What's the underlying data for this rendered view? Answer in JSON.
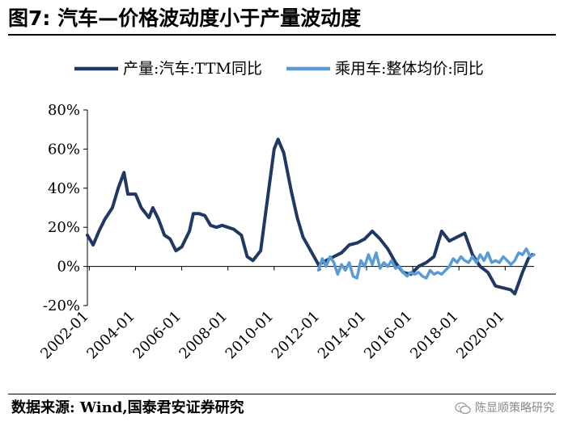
{
  "figure": {
    "title": "图7:  汽车—价格波动度小于产量波动度",
    "source": "数据来源:  Wind,国泰君安证券研究",
    "watermark": "陈显顺策略研究",
    "watermark_icon": "wechat-icon"
  },
  "chart_data": {
    "type": "line",
    "title": "",
    "xlabel": "",
    "ylabel": "",
    "ylim": [
      -20,
      80
    ],
    "yticks": [
      -20,
      0,
      20,
      40,
      60,
      80
    ],
    "ytick_labels": [
      "-20%",
      "0%",
      "20%",
      "40%",
      "60%",
      "80%"
    ],
    "x_range": [
      "2001-12",
      "2021-04"
    ],
    "xtick_labels": [
      "2002-01",
      "2004-01",
      "2006-01",
      "2008-01",
      "2010-01",
      "2012-01",
      "2014-01",
      "2016-01",
      "2018-01",
      "2020-01"
    ],
    "grid": false,
    "legend": "top",
    "series": [
      {
        "name": "产量:汽车:TTM同比",
        "color": "#1f3864",
        "points": [
          [
            "2001-12",
            16
          ],
          [
            "2002-03",
            11
          ],
          [
            "2002-06",
            18
          ],
          [
            "2002-09",
            24
          ],
          [
            "2003-01",
            30
          ],
          [
            "2003-04",
            40
          ],
          [
            "2003-07",
            48
          ],
          [
            "2003-09",
            37
          ],
          [
            "2004-01",
            37
          ],
          [
            "2004-04",
            30
          ],
          [
            "2004-08",
            25
          ],
          [
            "2004-10",
            30
          ],
          [
            "2005-01",
            24
          ],
          [
            "2005-04",
            16
          ],
          [
            "2005-07",
            14
          ],
          [
            "2005-10",
            8
          ],
          [
            "2006-01",
            10
          ],
          [
            "2006-05",
            18
          ],
          [
            "2006-07",
            27
          ],
          [
            "2006-10",
            27
          ],
          [
            "2007-01",
            26
          ],
          [
            "2007-04",
            21
          ],
          [
            "2007-07",
            20
          ],
          [
            "2007-10",
            21
          ],
          [
            "2008-01",
            20
          ],
          [
            "2008-04",
            19
          ],
          [
            "2008-08",
            16
          ],
          [
            "2008-11",
            5
          ],
          [
            "2009-02",
            3
          ],
          [
            "2009-06",
            8
          ],
          [
            "2009-10",
            38
          ],
          [
            "2010-01",
            60
          ],
          [
            "2010-03",
            65
          ],
          [
            "2010-06",
            58
          ],
          [
            "2010-10",
            38
          ],
          [
            "2011-01",
            25
          ],
          [
            "2011-04",
            15
          ],
          [
            "2011-08",
            8
          ],
          [
            "2011-12",
            1
          ],
          [
            "2012-04",
            3
          ],
          [
            "2012-08",
            5
          ],
          [
            "2012-12",
            7
          ],
          [
            "2013-04",
            11
          ],
          [
            "2013-08",
            12
          ],
          [
            "2013-12",
            14
          ],
          [
            "2014-04",
            18
          ],
          [
            "2014-08",
            14
          ],
          [
            "2014-12",
            9
          ],
          [
            "2015-04",
            2
          ],
          [
            "2015-08",
            -3
          ],
          [
            "2015-12",
            -4
          ],
          [
            "2016-04",
            0
          ],
          [
            "2016-08",
            2
          ],
          [
            "2016-12",
            5
          ],
          [
            "2017-04",
            18
          ],
          [
            "2017-08",
            13
          ],
          [
            "2017-12",
            15
          ],
          [
            "2018-04",
            17
          ],
          [
            "2018-08",
            6
          ],
          [
            "2018-12",
            0
          ],
          [
            "2019-04",
            -3
          ],
          [
            "2019-08",
            -10
          ],
          [
            "2019-12",
            -11
          ],
          [
            "2020-04",
            -12
          ],
          [
            "2020-06",
            -14
          ],
          [
            "2020-10",
            -3
          ],
          [
            "2021-01",
            4
          ],
          [
            "2021-03",
            6
          ]
        ]
      },
      {
        "name": "乘用车:整体均价:同比",
        "color": "#5b9bd5",
        "points": [
          [
            "2011-12",
            -2
          ],
          [
            "2012-02",
            4
          ],
          [
            "2012-04",
            0
          ],
          [
            "2012-06",
            5
          ],
          [
            "2012-08",
            2
          ],
          [
            "2012-10",
            -4
          ],
          [
            "2012-12",
            1
          ],
          [
            "2013-02",
            -2
          ],
          [
            "2013-04",
            2
          ],
          [
            "2013-06",
            -5
          ],
          [
            "2013-08",
            -6
          ],
          [
            "2013-10",
            3
          ],
          [
            "2013-12",
            0
          ],
          [
            "2014-02",
            6
          ],
          [
            "2014-04",
            1
          ],
          [
            "2014-06",
            7
          ],
          [
            "2014-08",
            -1
          ],
          [
            "2014-10",
            2
          ],
          [
            "2014-12",
            0
          ],
          [
            "2015-02",
            3
          ],
          [
            "2015-04",
            -1
          ],
          [
            "2015-06",
            0
          ],
          [
            "2015-08",
            -3
          ],
          [
            "2015-10",
            -5
          ],
          [
            "2015-12",
            -3
          ],
          [
            "2016-02",
            -4
          ],
          [
            "2016-04",
            -3
          ],
          [
            "2016-06",
            -5
          ],
          [
            "2016-08",
            -6
          ],
          [
            "2016-10",
            -2
          ],
          [
            "2016-12",
            -4
          ],
          [
            "2017-02",
            -3
          ],
          [
            "2017-04",
            -4
          ],
          [
            "2017-06",
            -2
          ],
          [
            "2017-08",
            0
          ],
          [
            "2017-10",
            4
          ],
          [
            "2017-12",
            2
          ],
          [
            "2018-02",
            5
          ],
          [
            "2018-04",
            3
          ],
          [
            "2018-06",
            2
          ],
          [
            "2018-08",
            5
          ],
          [
            "2018-10",
            2
          ],
          [
            "2018-12",
            6
          ],
          [
            "2019-02",
            3
          ],
          [
            "2019-04",
            7
          ],
          [
            "2019-06",
            2
          ],
          [
            "2019-08",
            3
          ],
          [
            "2019-10",
            2
          ],
          [
            "2019-12",
            5
          ],
          [
            "2020-02",
            3
          ],
          [
            "2020-04",
            1
          ],
          [
            "2020-06",
            3
          ],
          [
            "2020-08",
            7
          ],
          [
            "2020-10",
            6
          ],
          [
            "2020-12",
            9
          ],
          [
            "2021-02",
            5
          ],
          [
            "2021-04",
            6
          ]
        ]
      }
    ]
  }
}
